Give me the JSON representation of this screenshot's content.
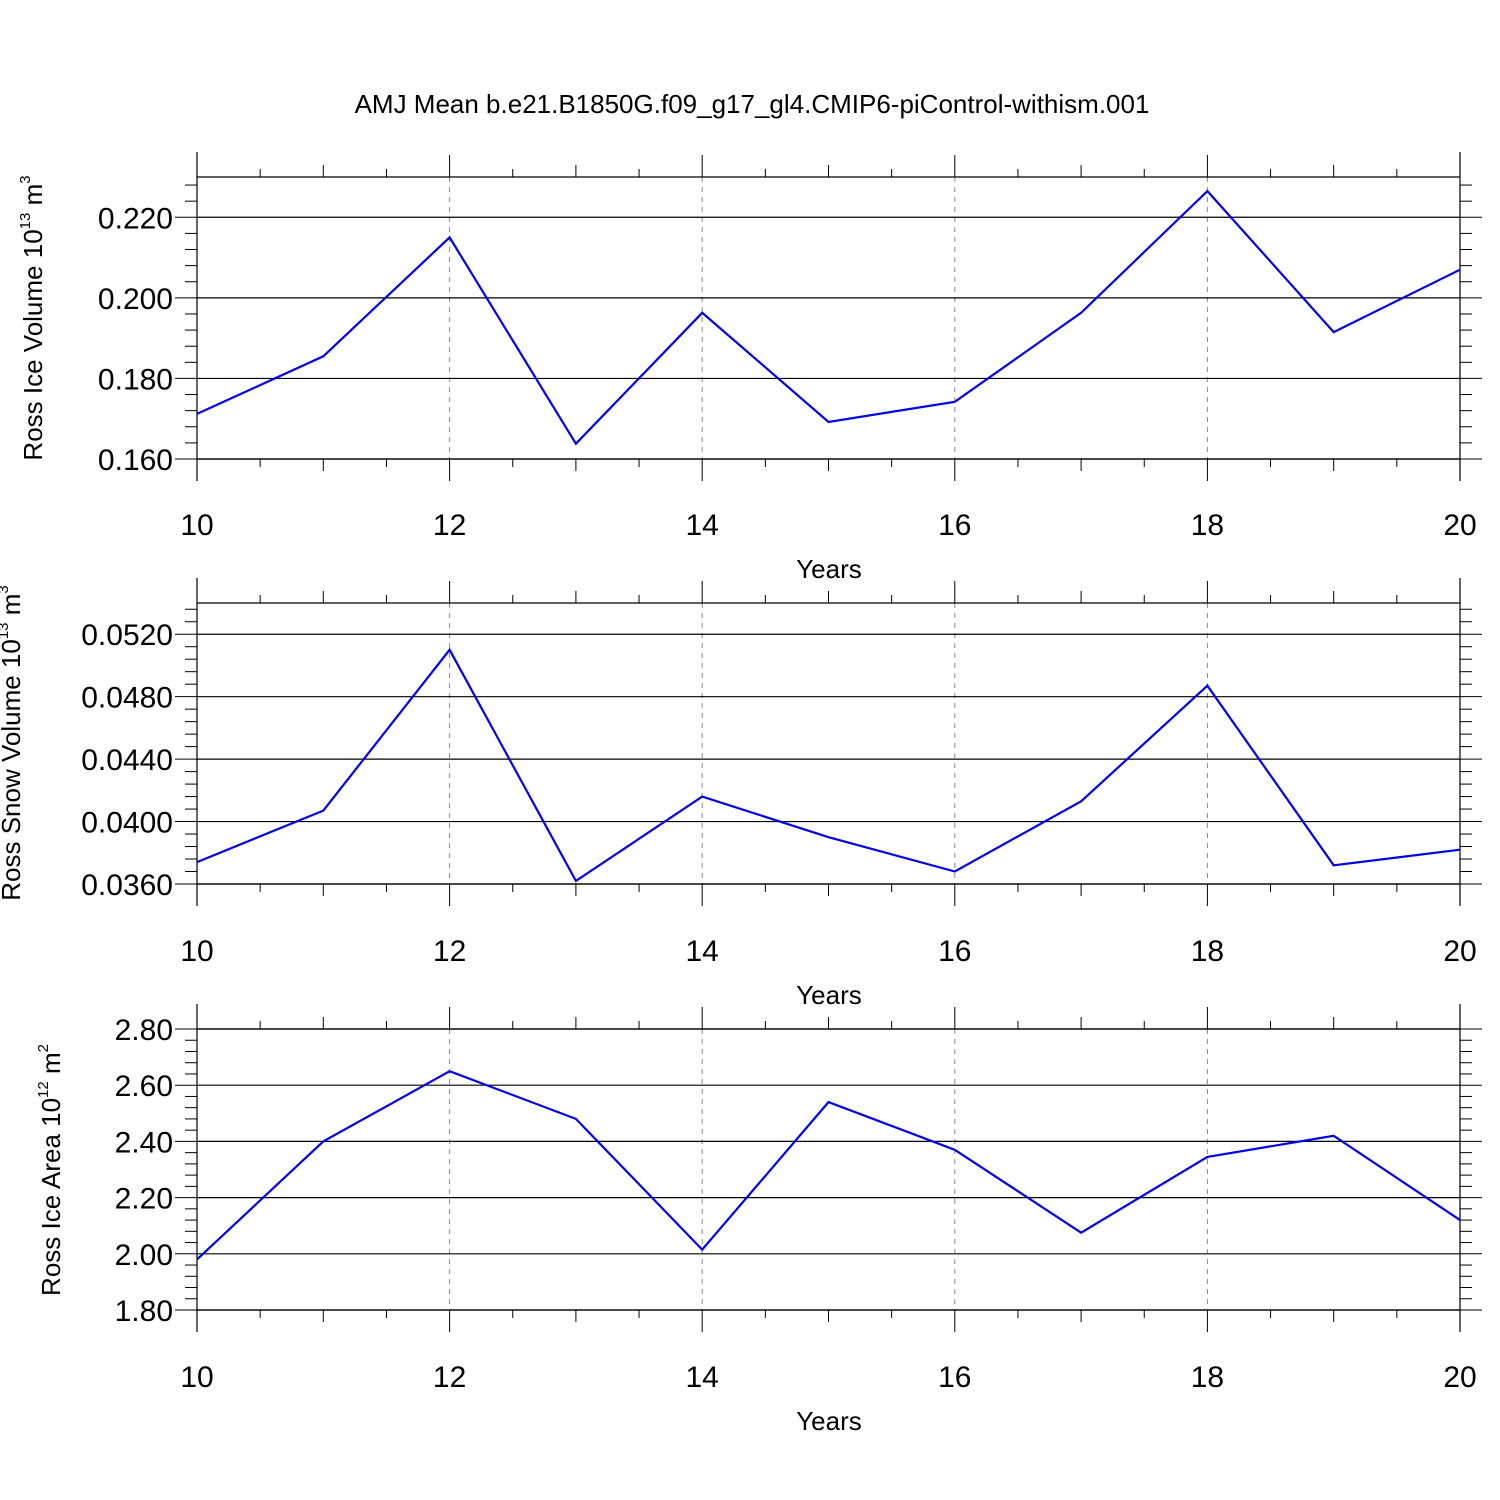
{
  "title": "AMJ Mean b.e21.B1850G.f09_g17_gl4.CMIP6-piControl-withism.001",
  "colors": {
    "line": "#0000ee",
    "axis": "#000000",
    "grid": "#888888"
  },
  "chart_data": [
    {
      "type": "line",
      "ylabel": {
        "text": "Ross Ice Volume 10",
        "sup": "13",
        "unit": " m",
        "unit_sup": "3"
      },
      "xlabel": "Years",
      "xlim": [
        10,
        20
      ],
      "ylim": [
        0.16,
        0.23
      ],
      "x_ticks": [
        "10",
        "12",
        "14",
        "16",
        "18",
        "20"
      ],
      "y_ticks": [
        "0.160",
        "0.180",
        "0.200",
        "0.220"
      ],
      "grid": "vertical dashed at major x ticks",
      "series": [
        {
          "x": [
            10,
            11,
            12,
            13,
            14,
            15,
            16,
            17,
            18,
            19,
            20
          ],
          "values": [
            0.1712,
            0.1855,
            0.215,
            0.1638,
            0.1963,
            0.1692,
            0.1742,
            0.1963,
            0.2265,
            0.1915,
            0.207
          ]
        }
      ]
    },
    {
      "type": "line",
      "ylabel": {
        "text": "Ross Snow Volume 10",
        "sup": "13",
        "unit": " m",
        "unit_sup": "3"
      },
      "xlabel": "Years",
      "xlim": [
        10,
        20
      ],
      "ylim": [
        0.036,
        0.054
      ],
      "x_ticks": [
        "10",
        "12",
        "14",
        "16",
        "18",
        "20"
      ],
      "y_ticks": [
        "0.0360",
        "0.0400",
        "0.0440",
        "0.0480",
        "0.0520"
      ],
      "grid": "vertical dashed at major x ticks",
      "series": [
        {
          "x": [
            10,
            11,
            12,
            13,
            14,
            15,
            16,
            17,
            18,
            19,
            20
          ],
          "values": [
            0.0374,
            0.0407,
            0.051,
            0.0362,
            0.0416,
            0.039,
            0.0368,
            0.0413,
            0.0487,
            0.0372,
            0.0382
          ]
        }
      ]
    },
    {
      "type": "line",
      "ylabel": {
        "text": "Ross Ice Area 10",
        "sup": "12",
        "unit": " m",
        "unit_sup": "2"
      },
      "xlabel": "Years",
      "xlim": [
        10,
        20
      ],
      "ylim": [
        1.8,
        2.8
      ],
      "x_ticks": [
        "10",
        "12",
        "14",
        "16",
        "18",
        "20"
      ],
      "y_ticks": [
        "1.80",
        "2.00",
        "2.20",
        "2.40",
        "2.60",
        "2.80"
      ],
      "grid": "vertical dashed at major x ticks",
      "series": [
        {
          "x": [
            10,
            11,
            12,
            13,
            14,
            15,
            16,
            17,
            18,
            19,
            20
          ],
          "values": [
            1.98,
            2.4,
            2.65,
            2.48,
            2.015,
            2.54,
            2.37,
            2.075,
            2.345,
            2.42,
            2.12
          ]
        }
      ]
    }
  ]
}
